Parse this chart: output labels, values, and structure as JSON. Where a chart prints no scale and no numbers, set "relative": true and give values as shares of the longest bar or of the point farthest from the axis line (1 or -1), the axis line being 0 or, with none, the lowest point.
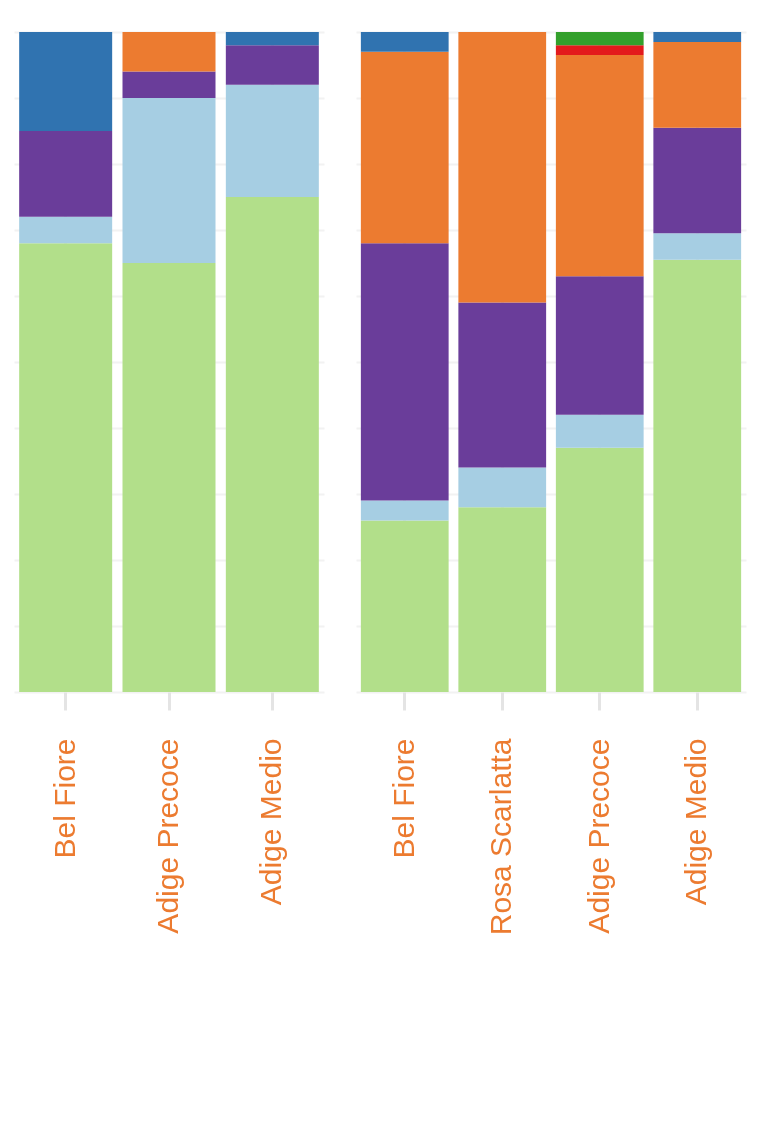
{
  "chart_data": [
    {
      "type": "bar",
      "stacked": true,
      "relative": true,
      "grid": true,
      "categories": [
        "Bel Fiore",
        "Adige Precoce",
        "Adige Medio"
      ],
      "series": [
        {
          "color": "#b2df8a",
          "values": [
            0.68,
            0.65,
            0.75
          ]
        },
        {
          "color": "#a6cee3",
          "values": [
            0.04,
            0.25,
            0.17
          ]
        },
        {
          "color": "#6a3d9a",
          "values": [
            0.13,
            0.04,
            0.06
          ]
        },
        {
          "color": "#ec7b30",
          "values": [
            0,
            0.06,
            0
          ]
        },
        {
          "color": "#3073b0",
          "values": [
            0.15,
            0,
            0.02
          ]
        }
      ]
    },
    {
      "type": "bar",
      "stacked": true,
      "relative": true,
      "grid": true,
      "categories": [
        "Bel Fiore",
        "Rosa Scarlatta",
        "Adige Precoce",
        "Adige Medio"
      ],
      "series": [
        {
          "color": "#b2df8a",
          "values": [
            0.26,
            0.28,
            0.37,
            0.655
          ]
        },
        {
          "color": "#a6cee3",
          "values": [
            0.03,
            0.06,
            0.05,
            0.04
          ]
        },
        {
          "color": "#6a3d9a",
          "values": [
            0.39,
            0.25,
            0.21,
            0.16
          ]
        },
        {
          "color": "#ec7b30",
          "values": [
            0.29,
            0.41,
            0.335,
            0.13
          ]
        },
        {
          "color": "#e31a1c",
          "values": [
            0,
            0,
            0.015,
            0
          ]
        },
        {
          "color": "#33a02c",
          "values": [
            0,
            0,
            0.02,
            0
          ]
        },
        {
          "color": "#3073b0",
          "values": [
            0.03,
            0,
            0,
            0.015
          ]
        }
      ]
    }
  ]
}
